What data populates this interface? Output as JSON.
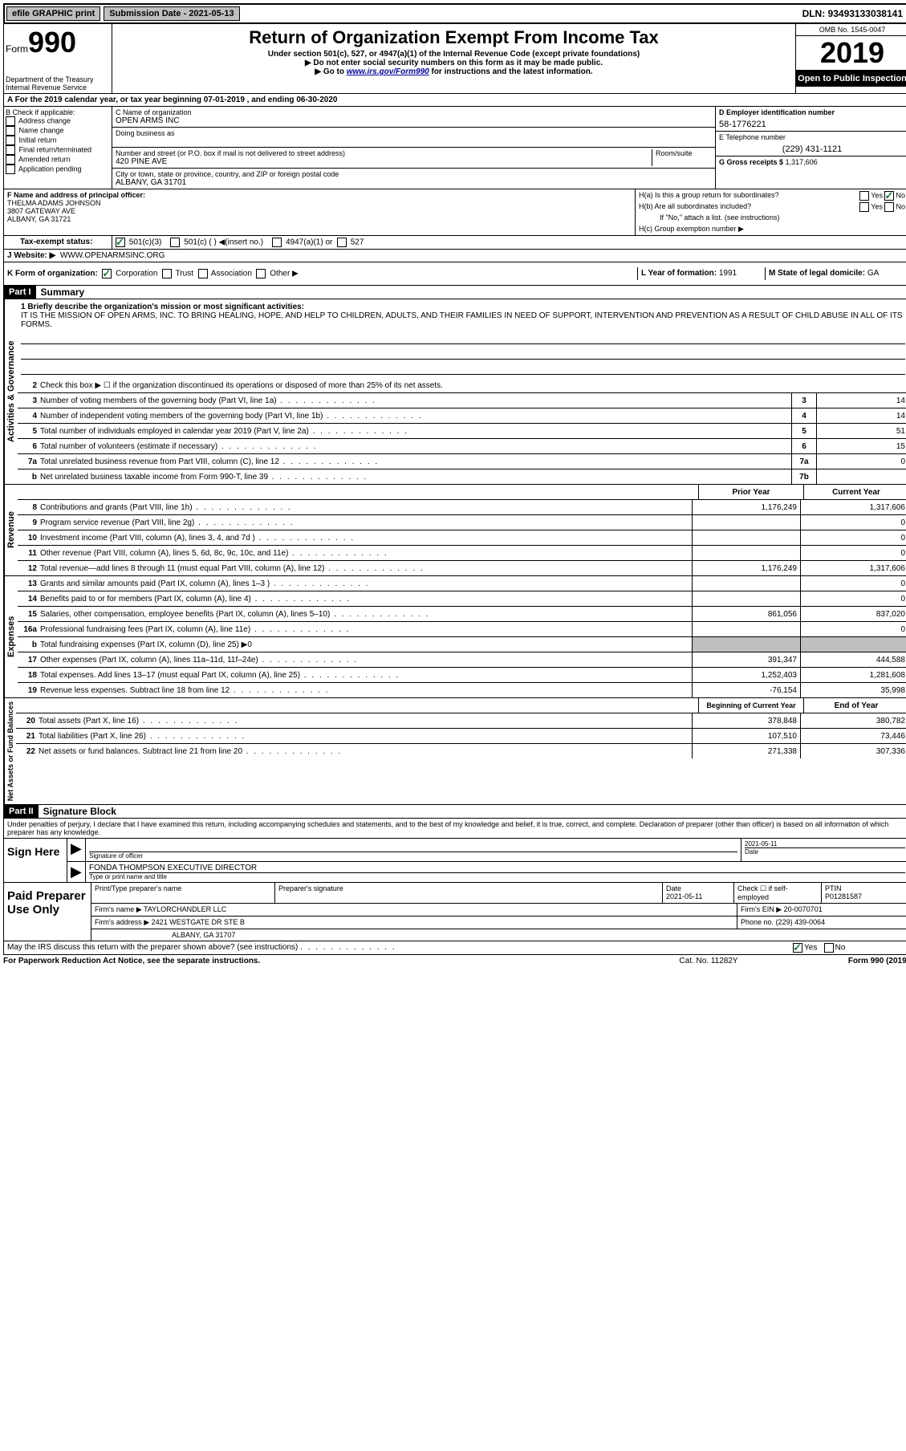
{
  "top": {
    "efile": "efile GRAPHIC print",
    "submission": "Submission Date - 2021-05-13",
    "dln": "DLN: 93493133038141"
  },
  "header": {
    "form_prefix": "Form",
    "form_num": "990",
    "dept": "Department of the Treasury\nInternal Revenue Service",
    "title": "Return of Organization Exempt From Income Tax",
    "sub1": "Under section 501(c), 527, or 4947(a)(1) of the Internal Revenue Code (except private foundations)",
    "sub2": "▶ Do not enter social security numbers on this form as it may be made public.",
    "sub3_pre": "▶ Go to ",
    "sub3_link": "www.irs.gov/Form990",
    "sub3_post": " for instructions and the latest information.",
    "omb": "OMB No. 1545-0047",
    "year": "2019",
    "inspection": "Open to Public Inspection"
  },
  "sectionA": "A For the 2019 calendar year, or tax year beginning 07-01-2019    , and ending 06-30-2020",
  "colB": {
    "label": "B Check if applicable:",
    "items": [
      "Address change",
      "Name change",
      "Initial return",
      "Final return/terminated",
      "Amended return",
      "Application pending"
    ]
  },
  "colC": {
    "name_label": "C Name of organization",
    "name": "OPEN ARMS INC",
    "dba_label": "Doing business as",
    "addr_label": "Number and street (or P.O. box if mail is not delivered to street address)",
    "room_label": "Room/suite",
    "addr": "420 PINE AVE",
    "city_label": "City or town, state or province, country, and ZIP or foreign postal code",
    "city": "ALBANY, GA  31701"
  },
  "colD": {
    "ein_label": "D Employer identification number",
    "ein": "58-1776221",
    "phone_label": "E Telephone number",
    "phone": "(229) 431-1121",
    "gross_label": "G Gross receipts $",
    "gross": "1,317,606"
  },
  "officer": {
    "label": "F  Name and address of principal officer:",
    "name": "THELMA ADAMS JOHNSON",
    "addr1": "3807 GATEWAY AVE",
    "addr2": "ALBANY, GA  31721"
  },
  "tax_exempt": {
    "label": "Tax-exempt status:",
    "opt1": "501(c)(3)",
    "opt2": "501(c) (  ) ◀(insert no.)",
    "opt3": "4947(a)(1) or",
    "opt4": "527"
  },
  "website": {
    "label": "J    Website: ▶",
    "val": "WWW.OPENARMSINC.ORG"
  },
  "h": {
    "a": "H(a)  Is this a group return for subordinates?",
    "b": "H(b)  Are all subordinates included?",
    "b_note": "If \"No,\" attach a list. (see instructions)",
    "c": "H(c)  Group exemption number ▶"
  },
  "formorg": {
    "label": "K Form of organization:",
    "opts": [
      "Corporation",
      "Trust",
      "Association",
      "Other ▶"
    ],
    "year_label": "L Year of formation:",
    "year": "1991",
    "state_label": "M State of legal domicile:",
    "state": "GA"
  },
  "part1": {
    "header": "Part I",
    "title": "Summary"
  },
  "mission": {
    "label": "1   Briefly describe the organization's mission or most significant activities:",
    "text": "IT IS THE MISSION OF OPEN ARMS, INC. TO BRING HEALING, HOPE, AND HELP TO CHILDREN, ADULTS, AND THEIR FAMILIES IN NEED OF SUPPORT, INTERVENTION AND PREVENTION AS A RESULT OF CHILD ABUSE IN ALL OF ITS FORMS."
  },
  "line2": "Check this box ▶ ☐ if the organization discontinued its operations or disposed of more than 25% of its net assets.",
  "gov_lines": [
    {
      "n": "3",
      "t": "Number of voting members of the governing body (Part VI, line 1a)",
      "box": "3",
      "v": "14"
    },
    {
      "n": "4",
      "t": "Number of independent voting members of the governing body (Part VI, line 1b)",
      "box": "4",
      "v": "14"
    },
    {
      "n": "5",
      "t": "Total number of individuals employed in calendar year 2019 (Part V, line 2a)",
      "box": "5",
      "v": "51"
    },
    {
      "n": "6",
      "t": "Total number of volunteers (estimate if necessary)",
      "box": "6",
      "v": "15"
    },
    {
      "n": "7a",
      "t": "Total unrelated business revenue from Part VIII, column (C), line 12",
      "box": "7a",
      "v": "0"
    },
    {
      "n": "b",
      "t": "Net unrelated business taxable income from Form 990-T, line 39",
      "box": "7b",
      "v": ""
    }
  ],
  "pycy": {
    "prior": "Prior Year",
    "current": "Current Year"
  },
  "rev_lines": [
    {
      "n": "8",
      "t": "Contributions and grants (Part VIII, line 1h)",
      "py": "1,176,249",
      "cy": "1,317,606"
    },
    {
      "n": "9",
      "t": "Program service revenue (Part VIII, line 2g)",
      "py": "",
      "cy": "0"
    },
    {
      "n": "10",
      "t": "Investment income (Part VIII, column (A), lines 3, 4, and 7d )",
      "py": "",
      "cy": "0"
    },
    {
      "n": "11",
      "t": "Other revenue (Part VIII, column (A), lines 5, 6d, 8c, 9c, 10c, and 11e)",
      "py": "",
      "cy": "0"
    },
    {
      "n": "12",
      "t": "Total revenue—add lines 8 through 11 (must equal Part VIII, column (A), line 12)",
      "py": "1,176,249",
      "cy": "1,317,606"
    }
  ],
  "exp_lines": [
    {
      "n": "13",
      "t": "Grants and similar amounts paid (Part IX, column (A), lines 1–3 )",
      "py": "",
      "cy": "0"
    },
    {
      "n": "14",
      "t": "Benefits paid to or for members (Part IX, column (A), line 4)",
      "py": "",
      "cy": "0"
    },
    {
      "n": "15",
      "t": "Salaries, other compensation, employee benefits (Part IX, column (A), lines 5–10)",
      "py": "861,056",
      "cy": "837,020"
    },
    {
      "n": "16a",
      "t": "Professional fundraising fees (Part IX, column (A), line 11e)",
      "py": "",
      "cy": "0"
    },
    {
      "n": "b",
      "t": "Total fundraising expenses (Part IX, column (D), line 25) ▶0",
      "py": "SHADE",
      "cy": "SHADE"
    },
    {
      "n": "17",
      "t": "Other expenses (Part IX, column (A), lines 11a–11d, 11f–24e)",
      "py": "391,347",
      "cy": "444,588"
    },
    {
      "n": "18",
      "t": "Total expenses. Add lines 13–17 (must equal Part IX, column (A), line 25)",
      "py": "1,252,403",
      "cy": "1,281,608"
    },
    {
      "n": "19",
      "t": "Revenue less expenses. Subtract line 18 from line 12",
      "py": "-76,154",
      "cy": "35,998"
    }
  ],
  "na_header": {
    "beg": "Beginning of Current Year",
    "end": "End of Year"
  },
  "na_lines": [
    {
      "n": "20",
      "t": "Total assets (Part X, line 16)",
      "py": "378,848",
      "cy": "380,782"
    },
    {
      "n": "21",
      "t": "Total liabilities (Part X, line 26)",
      "py": "107,510",
      "cy": "73,446"
    },
    {
      "n": "22",
      "t": "Net assets or fund balances. Subtract line 21 from line 20",
      "py": "271,338",
      "cy": "307,336"
    }
  ],
  "part2": {
    "header": "Part II",
    "title": "Signature Block"
  },
  "declare": "Under penalties of perjury, I declare that I have examined this return, including accompanying schedules and statements, and to the best of my knowledge and belief, it is true, correct, and complete. Declaration of preparer (other than officer) is based on all information of which preparer has any knowledge.",
  "sign": {
    "label": "Sign Here",
    "sig_label": "Signature of officer",
    "date": "2021-05-11",
    "date_label": "Date",
    "name": "FONDA THOMPSON  EXECUTIVE DIRECTOR",
    "name_label": "Type or print name and title"
  },
  "prep": {
    "label": "Paid Preparer Use Only",
    "h1": "Print/Type preparer's name",
    "h2": "Preparer's signature",
    "h3": "Date",
    "date": "2021-05-11",
    "h4": "Check ☐ if self-employed",
    "h5": "PTIN",
    "ptin": "P01281587",
    "firm_label": "Firm's name    ▶",
    "firm": "TAYLORCHANDLER LLC",
    "ein_label": "Firm's EIN ▶",
    "ein": "20-0070701",
    "addr_label": "Firm's address ▶",
    "addr1": "2421 WESTGATE DR STE B",
    "addr2": "ALBANY, GA  31707",
    "phone_label": "Phone no.",
    "phone": "(229) 439-0064"
  },
  "irs_discuss": "May the IRS discuss this return with the preparer shown above? (see instructions)",
  "footer": {
    "f1": "For Paperwork Reduction Act Notice, see the separate instructions.",
    "f2": "Cat. No. 11282Y",
    "f3": "Form 990 (2019)"
  },
  "vlabels": {
    "gov": "Activities & Governance",
    "rev": "Revenue",
    "exp": "Expenses",
    "na": "Net Assets or Fund Balances"
  }
}
